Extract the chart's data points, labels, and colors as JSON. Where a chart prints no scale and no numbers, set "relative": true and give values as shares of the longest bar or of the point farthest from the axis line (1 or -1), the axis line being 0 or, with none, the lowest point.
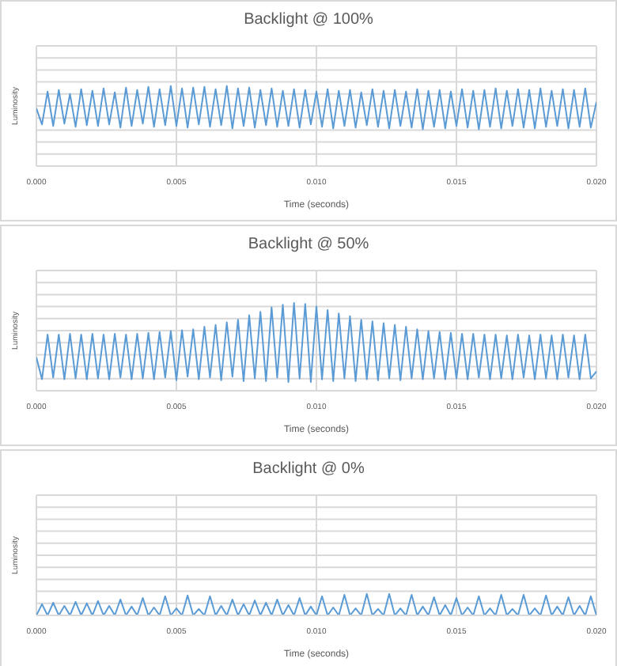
{
  "chart_data": [
    {
      "type": "line",
      "title": "Backlight @ 100%",
      "xlabel": "Time (seconds)",
      "ylabel": "Luminosity",
      "relative": true,
      "grid": true,
      "marker": "none",
      "xlim": [
        0,
        0.02
      ],
      "xticks": [
        {
          "value": 0,
          "label": "0.000"
        },
        {
          "value": 0.005,
          "label": "0.005"
        },
        {
          "value": 0.01,
          "label": "0.010"
        },
        {
          "value": 0.015,
          "label": "0.015"
        },
        {
          "value": 0.02,
          "label": "0.020"
        }
      ],
      "x": [
        0,
        0.0002,
        0.0004,
        0.0006,
        0.0008,
        0.001,
        0.0012,
        0.0014,
        0.0016,
        0.0018,
        0.002,
        0.0022,
        0.0024,
        0.0026,
        0.0028,
        0.003,
        0.0032,
        0.0034,
        0.0036,
        0.0038,
        0.004,
        0.0042,
        0.0044,
        0.0046,
        0.0048,
        0.005,
        0.0052,
        0.0054,
        0.0056,
        0.0058,
        0.006,
        0.0062,
        0.0064,
        0.0066,
        0.0068,
        0.007,
        0.0072,
        0.0074,
        0.0076,
        0.0078,
        0.008,
        0.0082,
        0.0084,
        0.0086,
        0.0088,
        0.009,
        0.0092,
        0.0094,
        0.0096,
        0.0098,
        0.01,
        0.0102,
        0.0104,
        0.0106,
        0.0108,
        0.011,
        0.0112,
        0.0114,
        0.0116,
        0.0118,
        0.012,
        0.0122,
        0.0124,
        0.0126,
        0.0128,
        0.013,
        0.0132,
        0.0134,
        0.0136,
        0.0138,
        0.014,
        0.0142,
        0.0144,
        0.0146,
        0.0148,
        0.015,
        0.0152,
        0.0154,
        0.0156,
        0.0158,
        0.016,
        0.0162,
        0.0164,
        0.0166,
        0.0168,
        0.017,
        0.0172,
        0.0174,
        0.0176,
        0.0178,
        0.018,
        0.0182,
        0.0184,
        0.0186,
        0.0188,
        0.019,
        0.0192,
        0.0194,
        0.0196,
        0.0198,
        0.02
      ],
      "series": [
        {
          "color": "#5b9bd5",
          "values": [
            0.72,
            0.52,
            0.93,
            0.5,
            0.95,
            0.53,
            0.9,
            0.49,
            0.96,
            0.51,
            0.94,
            0.5,
            0.97,
            0.52,
            0.92,
            0.48,
            0.98,
            0.5,
            0.95,
            0.53,
            0.99,
            0.49,
            0.96,
            0.51,
            1.0,
            0.5,
            0.97,
            0.48,
            0.98,
            0.52,
            0.99,
            0.49,
            0.96,
            0.51,
            1.0,
            0.47,
            0.97,
            0.5,
            0.98,
            0.48,
            0.95,
            0.51,
            0.97,
            0.49,
            0.94,
            0.5,
            0.96,
            0.48,
            0.95,
            0.52,
            0.93,
            0.49,
            0.96,
            0.47,
            0.94,
            0.5,
            0.95,
            0.48,
            0.92,
            0.51,
            0.96,
            0.49,
            0.94,
            0.47,
            0.95,
            0.5,
            0.93,
            0.48,
            0.96,
            0.46,
            0.94,
            0.49,
            0.95,
            0.47,
            0.93,
            0.5,
            0.96,
            0.48,
            0.94,
            0.46,
            0.95,
            0.49,
            0.97,
            0.47,
            0.94,
            0.5,
            0.96,
            0.48,
            0.95,
            0.47,
            0.97,
            0.49,
            0.94,
            0.5,
            0.96,
            0.47,
            0.95,
            0.49,
            0.97,
            0.48,
            0.8
          ]
        }
      ]
    },
    {
      "type": "line",
      "title": "Backlight @ 50%",
      "xlabel": "Time (seconds)",
      "ylabel": "Luminosity",
      "relative": true,
      "grid": true,
      "marker": "none",
      "xlim": [
        0,
        0.02
      ],
      "xticks": [
        {
          "value": 0,
          "label": "0.000"
        },
        {
          "value": 0.005,
          "label": "0.005"
        },
        {
          "value": 0.01,
          "label": "0.010"
        },
        {
          "value": 0.015,
          "label": "0.015"
        },
        {
          "value": 0.02,
          "label": "0.020"
        }
      ],
      "x": [
        0,
        0.0002,
        0.0004,
        0.0006,
        0.0008,
        0.001,
        0.0012,
        0.0014,
        0.0016,
        0.0018,
        0.002,
        0.0022,
        0.0024,
        0.0026,
        0.0028,
        0.003,
        0.0032,
        0.0034,
        0.0036,
        0.0038,
        0.004,
        0.0042,
        0.0044,
        0.0046,
        0.0048,
        0.005,
        0.0052,
        0.0054,
        0.0056,
        0.0058,
        0.006,
        0.0062,
        0.0064,
        0.0066,
        0.0068,
        0.007,
        0.0072,
        0.0074,
        0.0076,
        0.0078,
        0.008,
        0.0082,
        0.0084,
        0.0086,
        0.0088,
        0.009,
        0.0092,
        0.0094,
        0.0096,
        0.0098,
        0.01,
        0.0102,
        0.0104,
        0.0106,
        0.0108,
        0.011,
        0.0112,
        0.0114,
        0.0116,
        0.0118,
        0.012,
        0.0122,
        0.0124,
        0.0126,
        0.0128,
        0.013,
        0.0132,
        0.0134,
        0.0136,
        0.0138,
        0.014,
        0.0142,
        0.0144,
        0.0146,
        0.0148,
        0.015,
        0.0152,
        0.0154,
        0.0156,
        0.0158,
        0.016,
        0.0162,
        0.0164,
        0.0166,
        0.0168,
        0.017,
        0.0172,
        0.0174,
        0.0176,
        0.0178,
        0.018,
        0.0182,
        0.0184,
        0.0186,
        0.0188,
        0.019,
        0.0192,
        0.0194,
        0.0196,
        0.0198,
        0.02
      ],
      "series": [
        {
          "color": "#5b9bd5",
          "values": [
            0.38,
            0.13,
            0.64,
            0.15,
            0.64,
            0.13,
            0.65,
            0.14,
            0.64,
            0.13,
            0.65,
            0.14,
            0.64,
            0.13,
            0.65,
            0.15,
            0.64,
            0.13,
            0.65,
            0.14,
            0.66,
            0.13,
            0.67,
            0.15,
            0.68,
            0.12,
            0.69,
            0.16,
            0.7,
            0.13,
            0.73,
            0.15,
            0.75,
            0.12,
            0.78,
            0.16,
            0.81,
            0.11,
            0.86,
            0.14,
            0.9,
            0.11,
            0.95,
            0.15,
            0.98,
            0.1,
            1.0,
            0.14,
            0.99,
            0.1,
            0.96,
            0.13,
            0.92,
            0.11,
            0.88,
            0.14,
            0.85,
            0.11,
            0.81,
            0.13,
            0.79,
            0.12,
            0.77,
            0.14,
            0.75,
            0.12,
            0.73,
            0.14,
            0.7,
            0.13,
            0.68,
            0.14,
            0.67,
            0.13,
            0.66,
            0.14,
            0.65,
            0.13,
            0.65,
            0.15,
            0.64,
            0.13,
            0.64,
            0.14,
            0.63,
            0.13,
            0.64,
            0.15,
            0.63,
            0.13,
            0.64,
            0.14,
            0.63,
            0.13,
            0.64,
            0.15,
            0.63,
            0.13,
            0.64,
            0.14,
            0.22
          ]
        }
      ]
    },
    {
      "type": "line",
      "title": "Backlight @ 0%",
      "xlabel": "Time (seconds)",
      "ylabel": "Luminosity",
      "relative": true,
      "grid": true,
      "marker": "none",
      "xlim": [
        0,
        0.02
      ],
      "xticks": [
        {
          "value": 0,
          "label": "0.000"
        },
        {
          "value": 0.005,
          "label": "0.005"
        },
        {
          "value": 0.01,
          "label": "0.010"
        },
        {
          "value": 0.015,
          "label": "0.015"
        },
        {
          "value": 0.02,
          "label": "0.020"
        }
      ],
      "x": [
        0,
        0.0002,
        0.0004,
        0.0006,
        0.0008,
        0.001,
        0.0012,
        0.0014,
        0.0016,
        0.0018,
        0.002,
        0.0022,
        0.0024,
        0.0026,
        0.0028,
        0.003,
        0.0032,
        0.0034,
        0.0036,
        0.0038,
        0.004,
        0.0042,
        0.0044,
        0.0046,
        0.0048,
        0.005,
        0.0052,
        0.0054,
        0.0056,
        0.0058,
        0.006,
        0.0062,
        0.0064,
        0.0066,
        0.0068,
        0.007,
        0.0072,
        0.0074,
        0.0076,
        0.0078,
        0.008,
        0.0082,
        0.0084,
        0.0086,
        0.0088,
        0.009,
        0.0092,
        0.0094,
        0.0096,
        0.0098,
        0.01,
        0.0102,
        0.0104,
        0.0106,
        0.0108,
        0.011,
        0.0112,
        0.0114,
        0.0116,
        0.0118,
        0.012,
        0.0122,
        0.0124,
        0.0126,
        0.0128,
        0.013,
        0.0132,
        0.0134,
        0.0136,
        0.0138,
        0.014,
        0.0142,
        0.0144,
        0.0146,
        0.0148,
        0.015,
        0.0152,
        0.0154,
        0.0156,
        0.0158,
        0.016,
        0.0162,
        0.0164,
        0.0166,
        0.0168,
        0.017,
        0.0172,
        0.0174,
        0.0176,
        0.0178,
        0.018,
        0.0182,
        0.0184,
        0.0186,
        0.0188,
        0.019,
        0.0192,
        0.0194,
        0.0196,
        0.0198,
        0.02
      ],
      "series": [
        {
          "color": "#5b9bd5",
          "values": [
            0,
            0.52,
            0,
            0.59,
            0,
            0.44,
            0,
            0.63,
            0,
            0.56,
            0,
            0.67,
            0,
            0.44,
            0,
            0.74,
            0,
            0.41,
            0,
            0.81,
            0,
            0.37,
            0,
            0.89,
            0,
            0.33,
            0,
            0.93,
            0,
            0.3,
            0,
            0.89,
            0,
            0.44,
            0,
            0.74,
            0,
            0.52,
            0,
            0.7,
            0,
            0.59,
            0,
            0.74,
            0,
            0.48,
            0,
            0.81,
            0,
            0.41,
            0,
            0.89,
            0,
            0.37,
            0,
            0.96,
            0,
            0.33,
            0,
            1.0,
            0,
            0.3,
            0,
            1.0,
            0,
            0.33,
            0,
            0.96,
            0,
            0.41,
            0,
            0.85,
            0,
            0.48,
            0,
            0.81,
            0,
            0.37,
            0,
            0.89,
            0,
            0.33,
            0,
            0.96,
            0,
            0.3,
            0,
            0.96,
            0,
            0.33,
            0,
            0.93,
            0,
            0.41,
            0,
            0.85,
            0,
            0.44,
            0,
            0.89,
            0
          ]
        }
      ]
    }
  ]
}
